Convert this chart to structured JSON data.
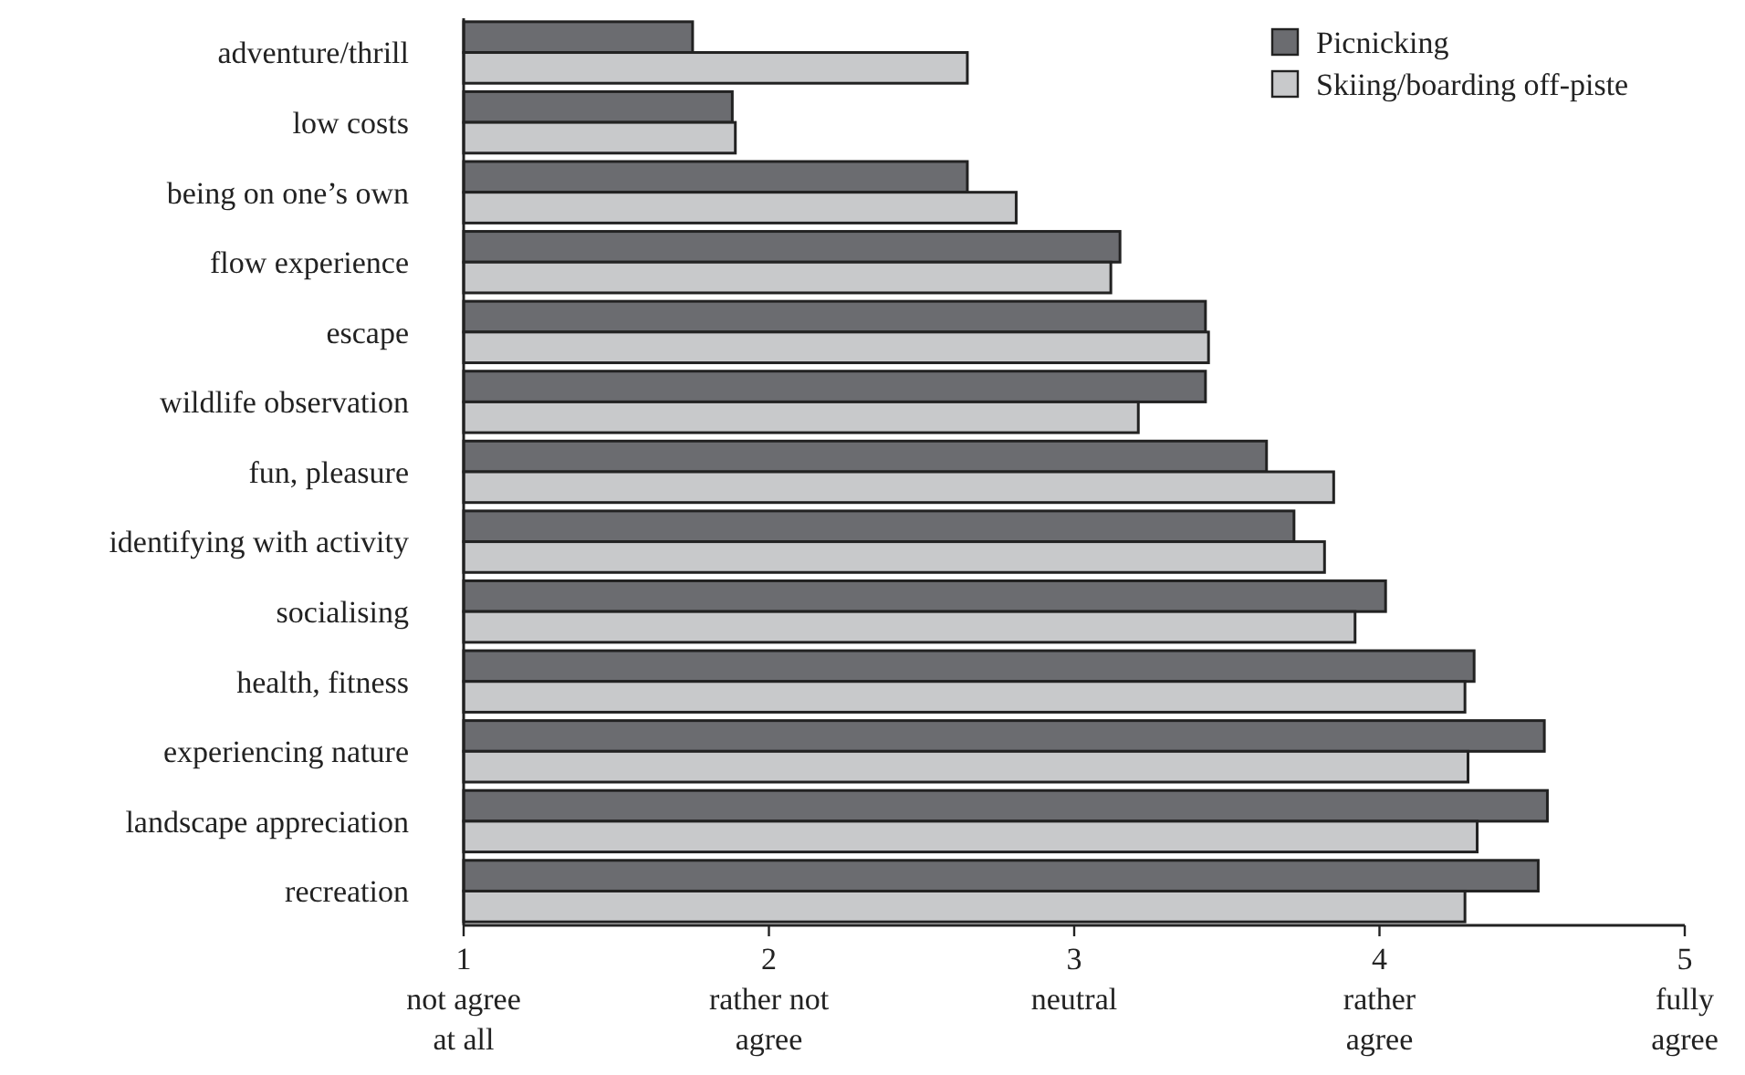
{
  "chart_data": {
    "type": "bar",
    "orientation": "horizontal",
    "categories": [
      "adventure/thrill",
      "low costs",
      "being on one’s own",
      "flow experience",
      "escape",
      "wildlife observation",
      "fun, pleasure",
      "identifying with activity",
      "socialising",
      "health, fitness",
      "experiencing nature",
      "landscape appreciation",
      "recreation"
    ],
    "series": [
      {
        "name": "Picnicking",
        "color": "#6b6c70",
        "values": [
          1.75,
          1.88,
          2.65,
          3.15,
          3.43,
          3.43,
          3.63,
          3.72,
          4.02,
          4.31,
          4.54,
          4.55,
          4.52
        ]
      },
      {
        "name": "Skiing/boarding off-piste",
        "color": "#c8c9cb",
        "values": [
          2.65,
          1.89,
          2.81,
          3.12,
          3.44,
          3.21,
          3.85,
          3.82,
          3.92,
          4.28,
          4.29,
          4.32,
          4.28
        ]
      }
    ],
    "xlim": [
      1,
      5
    ],
    "xticks": [
      {
        "value": 1,
        "label": "1\nnot agree\nat all"
      },
      {
        "value": 2,
        "label": "2\nrather not\nagree"
      },
      {
        "value": 3,
        "label": "3\nneutral"
      },
      {
        "value": 4,
        "label": "4\nrather\nagree"
      },
      {
        "value": 5,
        "label": "5\nfully\nagree"
      }
    ],
    "legend": "top right",
    "grid": false
  }
}
